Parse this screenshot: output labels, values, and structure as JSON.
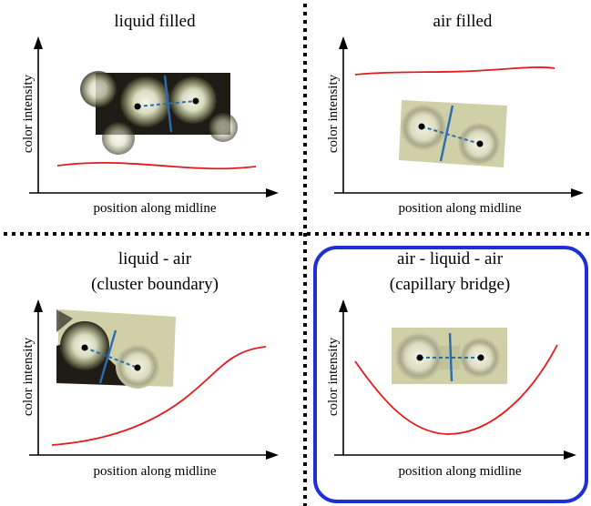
{
  "panels": [
    {
      "title_lines": [
        "liquid filled"
      ],
      "xlabel": "position along midline",
      "ylabel": "color intensity",
      "highlighted": false
    },
    {
      "title_lines": [
        "air filled"
      ],
      "xlabel": "position along midline",
      "ylabel": "color intensity",
      "highlighted": false
    },
    {
      "title_lines": [
        "liquid - air",
        "(cluster boundary)"
      ],
      "xlabel": "position along midline",
      "ylabel": "color intensity",
      "highlighted": false
    },
    {
      "title_lines": [
        "air - liquid - air",
        "(capillary bridge)"
      ],
      "xlabel": "position along midline",
      "ylabel": "color intensity",
      "highlighted": true
    }
  ],
  "colors": {
    "curve": "#e41a1c",
    "midline": "#2b6cb0",
    "highlight_frame": "#1f2fd6",
    "liquid_background": "#1e1c14",
    "air_background": "#cfd0a8",
    "sphere_core": "#e8ecd8"
  },
  "icons": [
    "particle-image-liquid",
    "particle-image-air",
    "particle-image-boundary",
    "particle-image-bridge"
  ]
}
